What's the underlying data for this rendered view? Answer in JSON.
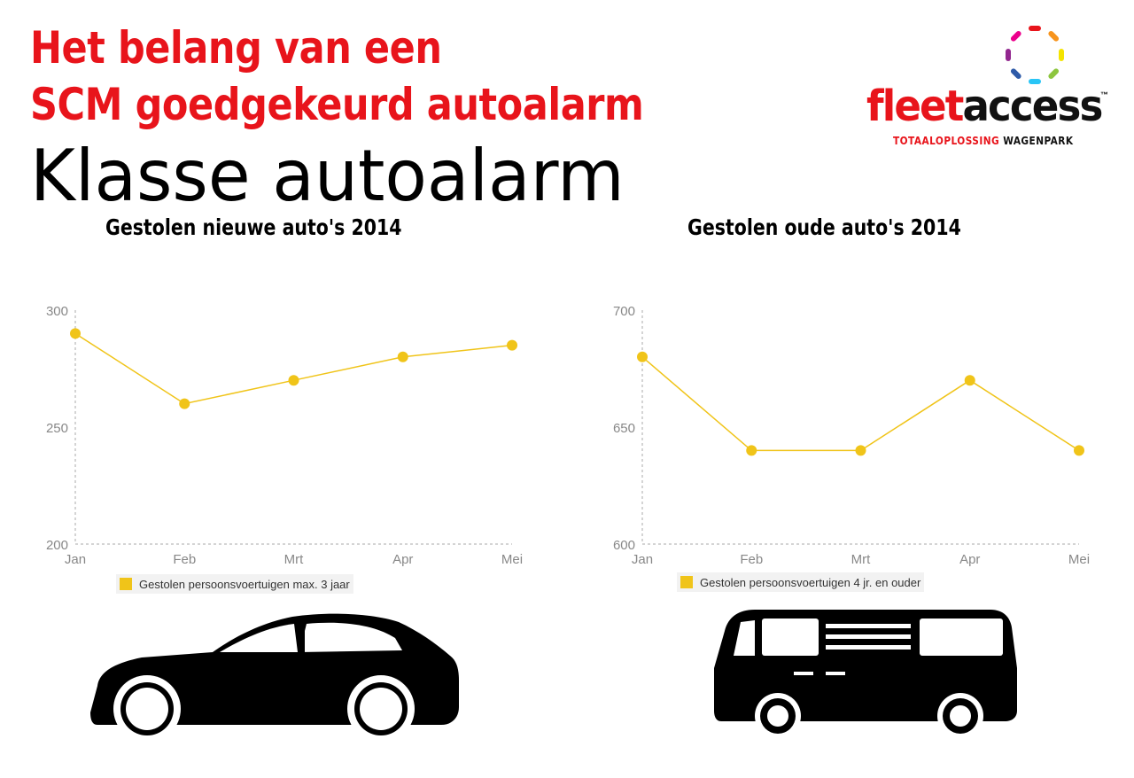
{
  "header": {
    "title_line1": "Het belang van een",
    "title_line2": "SCM goedgekeurd autoalarm",
    "title_line3": "Klasse autoalarm"
  },
  "logo": {
    "word_part1": "fleet",
    "word_part2": "access",
    "trademark": "™",
    "tagline_part1": "TOTAALOPLOSSING",
    "tagline_part2": "WAGENPARK",
    "ring_colors": [
      "#e8141b",
      "#f7941d",
      "#f4e400",
      "#8dc63f",
      "#29c5f6",
      "#2e5aa8",
      "#92278f",
      "#ec008c"
    ]
  },
  "colors": {
    "title_red": "#e8141b",
    "series_yellow": "#f0c419",
    "axis_grey": "#aaaaaa",
    "tick_text": "#888888"
  },
  "chart_data": [
    {
      "type": "line",
      "title": "Gestolen nieuwe auto's 2014",
      "categories": [
        "Jan",
        "Feb",
        "Mrt",
        "Apr",
        "Mei"
      ],
      "ylim": [
        200,
        300
      ],
      "yticks": [
        200,
        250,
        300
      ],
      "series": [
        {
          "name": "Gestolen persoonsvoertuigen max. 3 jaar",
          "values": [
            290,
            260,
            270,
            280,
            285
          ],
          "color": "#f0c419"
        }
      ],
      "legend_position": "bottom"
    },
    {
      "type": "line",
      "title": "Gestolen oude auto's 2014",
      "categories": [
        "Jan",
        "Feb",
        "Mrt",
        "Apr",
        "Mei"
      ],
      "ylim": [
        600,
        700
      ],
      "yticks": [
        600,
        650,
        700
      ],
      "series": [
        {
          "name": "Gestolen persoonsvoertuigen 4 jr. en ouder",
          "values": [
            680,
            640,
            640,
            670,
            640
          ],
          "color": "#f0c419"
        }
      ],
      "legend_position": "bottom"
    }
  ],
  "icons": {
    "left_vehicle": "car-icon",
    "right_vehicle": "van-icon"
  }
}
